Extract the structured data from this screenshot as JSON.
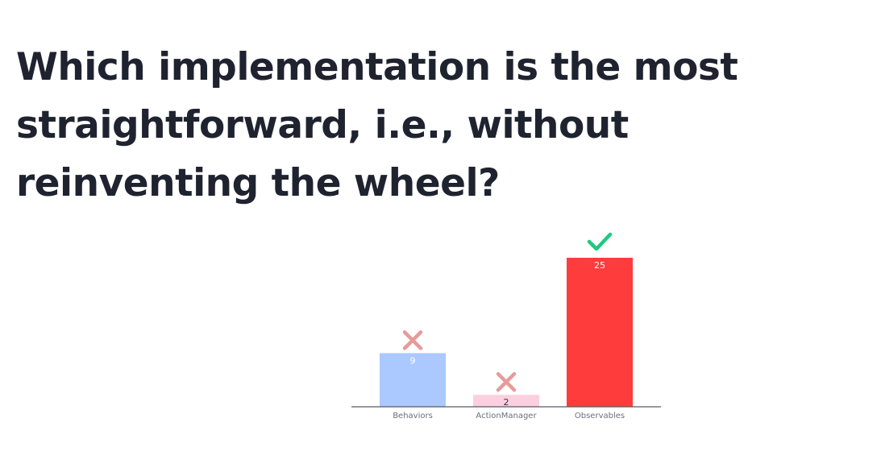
{
  "question": "Which implementation is the most straightforward, i.e., without reinventing the wheel?",
  "colors": {
    "text": "#1f2330",
    "correct": "#1ec97f",
    "incorrect": "#e89a9a",
    "axis": "#555a66"
  },
  "chart_data": {
    "type": "bar",
    "title": "",
    "xlabel": "",
    "ylabel": "",
    "categories": [
      "Behaviors",
      "ActionManager",
      "Observables"
    ],
    "values": [
      9,
      2,
      25
    ],
    "ylim": [
      0,
      25
    ],
    "grid": false,
    "bar_colors": [
      "#abc8ff",
      "#fccfdf",
      "#ff3c3c"
    ],
    "label_colors": [
      "#ffffff",
      "#333333",
      "#ffffff"
    ],
    "correct": [
      false,
      false,
      true
    ],
    "marker_icons": [
      "cross-icon",
      "cross-icon",
      "checkmark-icon"
    ]
  }
}
